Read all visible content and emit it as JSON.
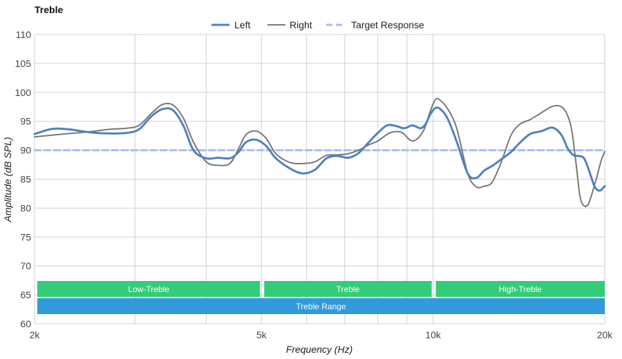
{
  "chart_data": {
    "type": "line",
    "title": "Treble",
    "xlabel": "Frequency (Hz)",
    "ylabel": "Amplitude (dB SPL)",
    "x_scale": "log",
    "xlim": [
      2000,
      20000
    ],
    "ylim": [
      60,
      110
    ],
    "grid": true,
    "legend_position": "top-center",
    "x_ticks": [
      {
        "value": 2000,
        "label": "2k"
      },
      {
        "value": 5000,
        "label": "5k"
      },
      {
        "value": 10000,
        "label": "10k"
      },
      {
        "value": 20000,
        "label": "20k"
      }
    ],
    "x_minor_grid": [
      3000,
      4000,
      6000,
      7000,
      8000,
      9000
    ],
    "y_ticks": [
      60,
      65,
      70,
      75,
      80,
      85,
      90,
      95,
      100,
      105,
      110
    ],
    "series": [
      {
        "name": "Left",
        "color": "#4f81bd",
        "style": "solid-thick",
        "x": [
          2000,
          2150,
          2300,
          2500,
          2700,
          2900,
          3050,
          3200,
          3350,
          3500,
          3650,
          3800,
          4000,
          4200,
          4400,
          4550,
          4700,
          4900,
          5100,
          5300,
          5600,
          5900,
          6200,
          6500,
          6800,
          7100,
          7400,
          7700,
          8000,
          8300,
          8600,
          8900,
          9200,
          9500,
          9700,
          9900,
          10100,
          10300,
          10600,
          11000,
          11500,
          11900,
          12300,
          12700,
          13200,
          13700,
          14200,
          14800,
          15500,
          16200,
          16800,
          17200,
          17600,
          18000,
          18400,
          18800,
          19200,
          19600,
          20000
        ],
        "y": [
          92.8,
          93.7,
          93.6,
          93.1,
          92.9,
          93.0,
          93.6,
          95.8,
          97.1,
          96.9,
          94.2,
          90.0,
          88.6,
          88.7,
          88.6,
          89.6,
          91.4,
          91.8,
          90.7,
          88.6,
          86.9,
          86.0,
          86.6,
          88.6,
          89.0,
          88.7,
          89.5,
          91.3,
          93.0,
          94.3,
          94.2,
          93.8,
          94.3,
          93.8,
          94.5,
          96.3,
          97.3,
          97.1,
          95.5,
          91.5,
          86.0,
          85.2,
          86.5,
          87.3,
          88.5,
          89.7,
          91.3,
          92.8,
          93.3,
          93.9,
          92.6,
          90.4,
          89.2,
          89.0,
          88.6,
          86.3,
          83.7,
          83.0,
          83.8
        ]
      },
      {
        "name": "Right",
        "color": "#777777",
        "style": "solid",
        "x": [
          2000,
          2250,
          2500,
          2700,
          2900,
          3050,
          3200,
          3350,
          3500,
          3650,
          3800,
          4000,
          4200,
          4400,
          4550,
          4700,
          4900,
          5100,
          5300,
          5600,
          5900,
          6200,
          6500,
          6800,
          7100,
          7400,
          7700,
          8000,
          8400,
          8800,
          9200,
          9600,
          9900,
          10100,
          10300,
          10600,
          11000,
          11500,
          11900,
          12300,
          12700,
          13200,
          13700,
          14200,
          14800,
          15500,
          16200,
          16800,
          17200,
          17500,
          17800,
          18100,
          18400,
          18700,
          19000,
          19400,
          19700,
          20000
        ],
        "y": [
          92.3,
          92.8,
          93.2,
          93.6,
          93.8,
          94.3,
          96.3,
          97.9,
          97.8,
          95.5,
          91.4,
          88.0,
          87.4,
          87.7,
          90.1,
          92.7,
          93.3,
          92.0,
          89.4,
          87.9,
          87.7,
          88.0,
          89.1,
          89.2,
          89.4,
          90.0,
          90.9,
          91.6,
          93.0,
          93.1,
          91.6,
          93.2,
          96.9,
          98.8,
          98.6,
          97.2,
          93.8,
          86.0,
          83.7,
          83.8,
          84.5,
          88.2,
          92.6,
          94.5,
          95.3,
          96.5,
          97.6,
          97.5,
          96.1,
          93.5,
          88.0,
          82.0,
          80.4,
          80.6,
          82.5,
          85.6,
          88.1,
          89.8
        ]
      },
      {
        "name": "Target Response",
        "color": "#aabcf6",
        "style": "dashed",
        "x": [
          2000,
          20000
        ],
        "y": [
          90,
          90
        ]
      }
    ],
    "bands": [
      {
        "label": "Low-Treble",
        "x0": 2000,
        "x1": 5000,
        "color": "#33cc77",
        "row": 1
      },
      {
        "label": "Treble",
        "x0": 5000,
        "x1": 10000,
        "color": "#33cc77",
        "row": 1
      },
      {
        "label": "High-Treble",
        "x0": 10000,
        "x1": 20000,
        "color": "#33cc77",
        "row": 1
      },
      {
        "label": "Treble Range",
        "x0": 2000,
        "x1": 20000,
        "color": "#3399dd",
        "row": 2
      }
    ]
  }
}
